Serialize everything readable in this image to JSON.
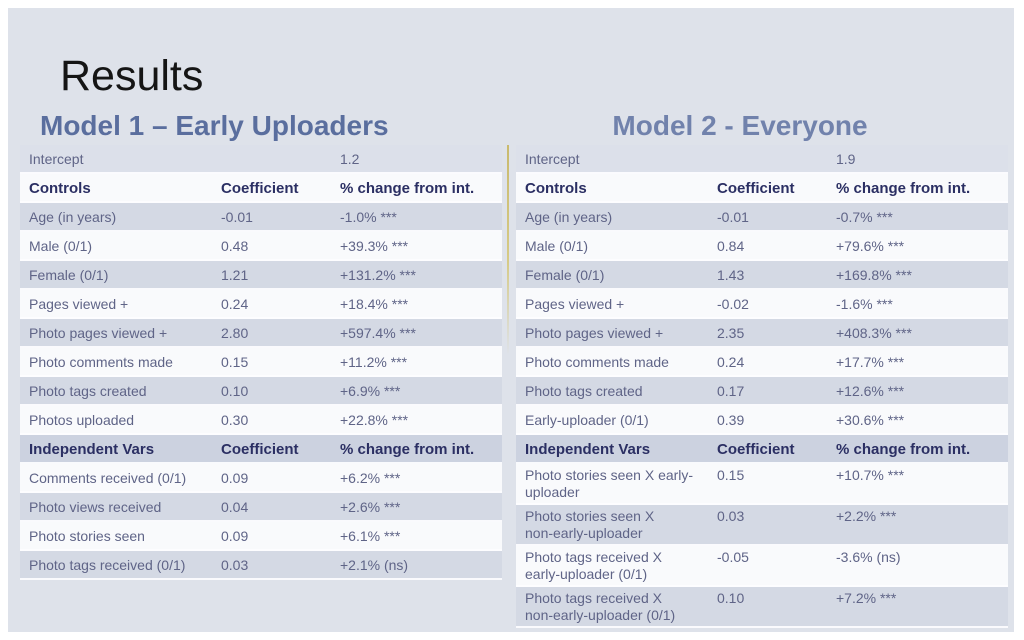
{
  "slide_title": "Results",
  "colors": {
    "slide_bg": "#dee2ea",
    "title": "#151515",
    "model1_heading": "#5a6e9e",
    "model2_heading": "#7182ac",
    "header_text": "#2b2f63",
    "body_text": "#5f6487",
    "row_white": "#f9fafc",
    "row_gray": "#d4d9e4",
    "row_intercept": "#dce0ea",
    "row_header_gray": "#ccd2e0",
    "gold_divider": "#c9ba6e"
  },
  "tables": [
    {
      "heading": "Model 1 – Early Uploaders",
      "rows": [
        {
          "type": "intercept",
          "label": "Intercept",
          "coef": "",
          "pct": "1.2"
        },
        {
          "type": "header",
          "label": "Controls",
          "coef": "Coefficient",
          "pct": "% change from int."
        },
        {
          "type": "data",
          "label": "Age (in years)",
          "coef": "-0.01",
          "pct": "-1.0% ***"
        },
        {
          "type": "data",
          "label": "Male (0/1)",
          "coef": "0.48",
          "pct": "+39.3% ***"
        },
        {
          "type": "data",
          "label": "Female (0/1)",
          "coef": "1.21",
          "pct": "+131.2% ***"
        },
        {
          "type": "data",
          "label": "Pages viewed +",
          "coef": "0.24",
          "pct": "+18.4% ***"
        },
        {
          "type": "data",
          "label": "Photo pages viewed +",
          "coef": "2.80",
          "pct": "+597.4% ***"
        },
        {
          "type": "data",
          "label": "Photo comments made",
          "coef": "0.15",
          "pct": "+11.2% ***"
        },
        {
          "type": "data",
          "label": "Photo tags created",
          "coef": "0.10",
          "pct": "+6.9% ***"
        },
        {
          "type": "data",
          "label": "Photos uploaded",
          "coef": "0.30",
          "pct": "+22.8% ***"
        },
        {
          "type": "header",
          "label": "Independent Vars",
          "coef": "Coefficient",
          "pct": "% change from int."
        },
        {
          "type": "data",
          "label": "Comments received (0/1)",
          "coef": "0.09",
          "pct": "+6.2% ***"
        },
        {
          "type": "data",
          "label": "Photo views received",
          "coef": "0.04",
          "pct": "+2.6% ***"
        },
        {
          "type": "data",
          "label": "Photo stories seen",
          "coef": "0.09",
          "pct": "+6.1% ***"
        },
        {
          "type": "data",
          "label": "Photo tags received (0/1)",
          "coef": "0.03",
          "pct": "+2.1% (ns)"
        }
      ]
    },
    {
      "heading": "Model 2 - Everyone",
      "rows": [
        {
          "type": "intercept",
          "label": "Intercept",
          "coef": "",
          "pct": "1.9"
        },
        {
          "type": "header",
          "label": "Controls",
          "coef": "Coefficient",
          "pct": "% change from int."
        },
        {
          "type": "data",
          "label": "Age (in years)",
          "coef": "-0.01",
          "pct": "-0.7% ***"
        },
        {
          "type": "data",
          "label": "Male (0/1)",
          "coef": "0.84",
          "pct": "+79.6% ***"
        },
        {
          "type": "data",
          "label": "Female (0/1)",
          "coef": "1.43",
          "pct": "+169.8% ***"
        },
        {
          "type": "data",
          "label": "Pages viewed +",
          "coef": "-0.02",
          "pct": "-1.6% ***"
        },
        {
          "type": "data",
          "label": "Photo pages viewed +",
          "coef": "2.35",
          "pct": "+408.3% ***"
        },
        {
          "type": "data",
          "label": "Photo comments made",
          "coef": "0.24",
          "pct": "+17.7% ***"
        },
        {
          "type": "data",
          "label": "Photo tags created",
          "coef": "0.17",
          "pct": "+12.6% ***"
        },
        {
          "type": "data",
          "label": "Early-uploader (0/1)",
          "coef": "0.39",
          "pct": "+30.6% ***"
        },
        {
          "type": "header",
          "label": "Independent Vars",
          "coef": "Coefficient",
          "pct": "% change from int."
        },
        {
          "type": "data",
          "label": "Photo stories seen X early-\nuploader",
          "coef": "0.15",
          "pct": "+10.7% ***"
        },
        {
          "type": "data",
          "label": "Photo stories seen X\nnon-early-uploader",
          "coef": "0.03",
          "pct": "+2.2% ***"
        },
        {
          "type": "data",
          "label": "Photo tags received X\nearly-uploader (0/1)",
          "coef": "-0.05",
          "pct": "-3.6% (ns)"
        },
        {
          "type": "data",
          "label": "Photo tags received X\nnon-early-uploader (0/1)",
          "coef": "0.10",
          "pct": "+7.2% ***"
        }
      ]
    }
  ]
}
